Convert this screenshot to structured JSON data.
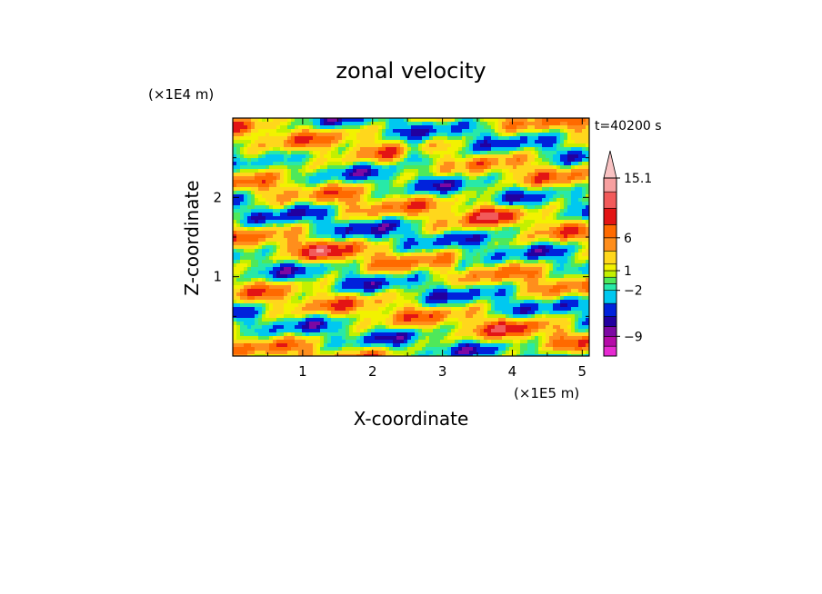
{
  "chart_data": {
    "type": "heatmap",
    "title": "zonal velocity",
    "xlabel": "X-coordinate",
    "ylabel": "Z-coordinate",
    "x_unit": "(×1E5 m)",
    "y_unit": "(×1E4 m)",
    "time_label": "t=40200 s",
    "xlim": [
      0,
      5.1
    ],
    "ylim": [
      0,
      3
    ],
    "x_ticks": [
      "1",
      "2",
      "3",
      "4",
      "5"
    ],
    "x_tick_values": [
      1,
      2,
      3,
      4,
      5
    ],
    "y_ticks": [
      "1",
      "2"
    ],
    "y_tick_values": [
      1,
      2
    ],
    "colorbar": {
      "levels": [
        -12,
        -10.5,
        -9,
        -7.5,
        -6,
        -4,
        -2,
        -1,
        0,
        1,
        2,
        4,
        6,
        8,
        10.5,
        13,
        15.1
      ],
      "colors": [
        "#e62ad2",
        "#b50aa8",
        "#7d08a3",
        "#2200a0",
        "#0022dc",
        "#00c8f0",
        "#28e9a8",
        "#4fe85a",
        "#c3f000",
        "#f2f200",
        "#ffd71c",
        "#ff8e1c",
        "#ff6a00",
        "#e31414",
        "#f25a5a",
        "#f7a0a0",
        "#f8c2c2"
      ],
      "labels": [
        "15.1",
        "6",
        "1",
        "−2",
        "−9"
      ],
      "label_values": [
        15.1,
        6,
        1,
        -2,
        -9
      ]
    }
  }
}
